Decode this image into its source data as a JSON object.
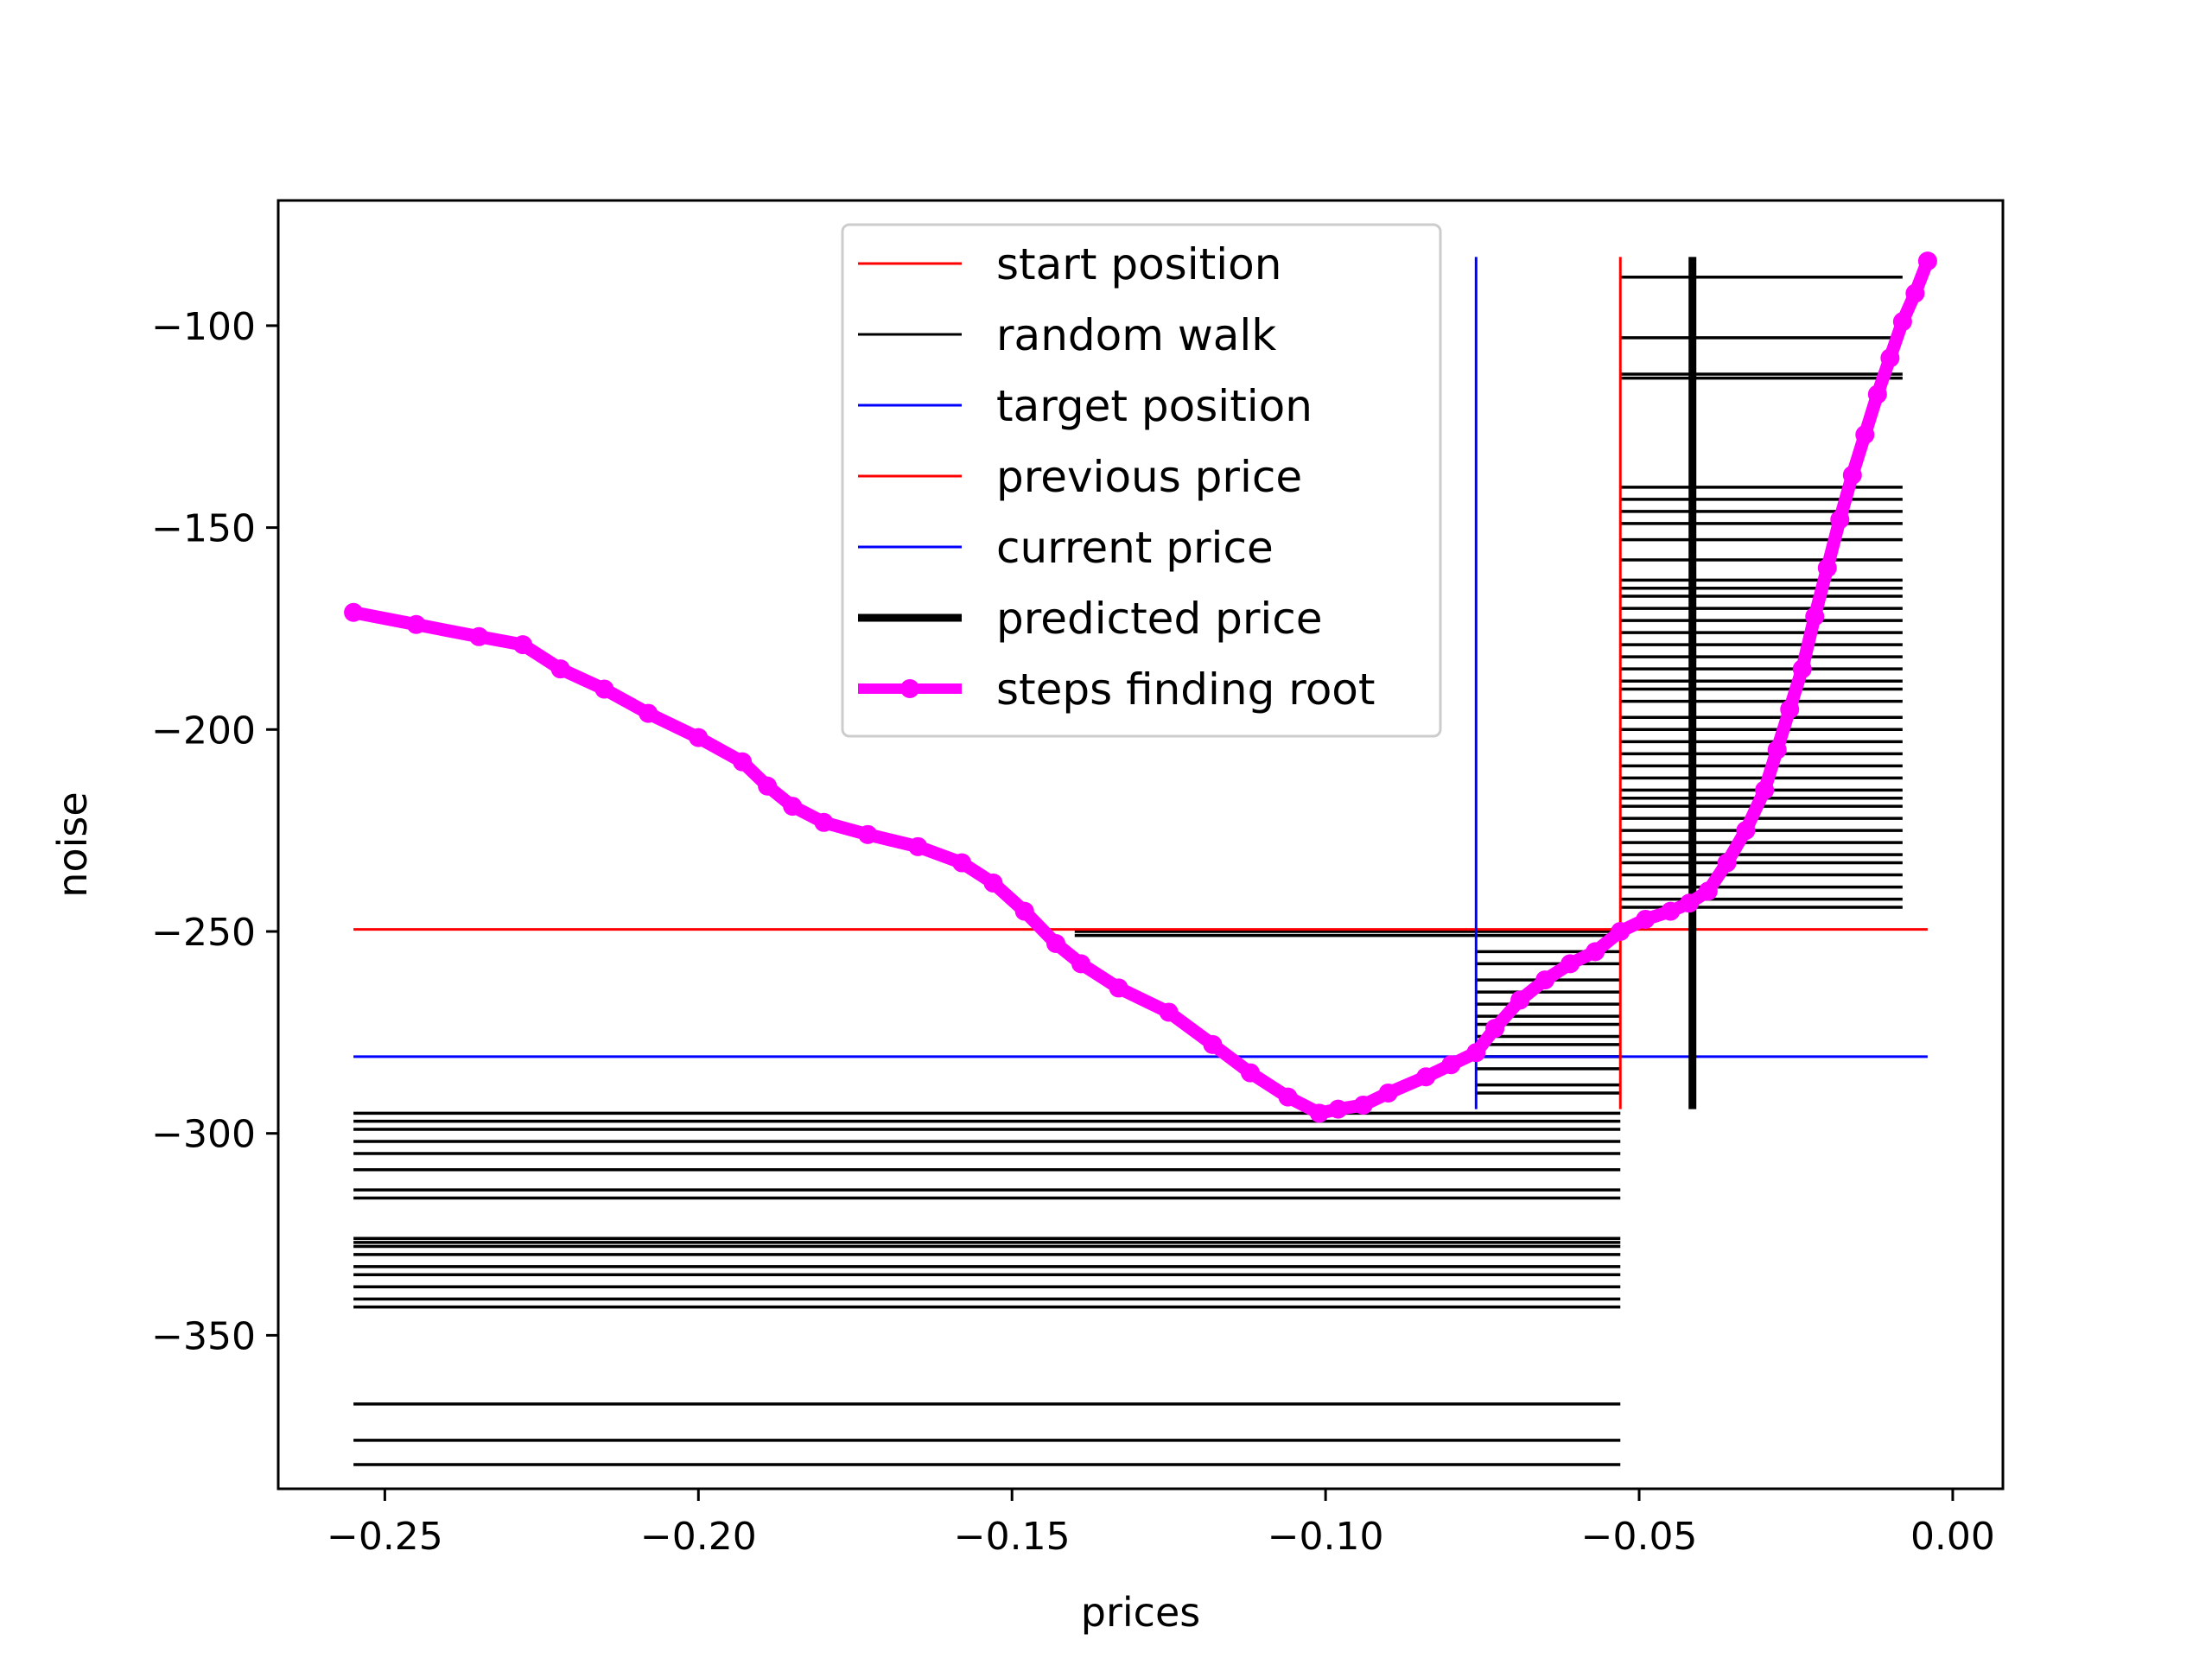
{
  "chart_data": {
    "type": "line",
    "xlabel": "prices",
    "ylabel": "noise",
    "xlim": [
      -0.267,
      0.008
    ],
    "ylim": [
      -388,
      -69
    ],
    "xticks": [
      -0.25,
      -0.2,
      -0.15,
      -0.1,
      -0.05,
      0.0
    ],
    "xtick_labels": [
      "−0.25",
      "−0.20",
      "−0.15",
      "−0.10",
      "−0.05",
      "0.00"
    ],
    "yticks": [
      -100,
      -150,
      -200,
      -250,
      -300,
      -350
    ],
    "ytick_labels": [
      "−100",
      "−150",
      "−200",
      "−250",
      "−300",
      "−350"
    ],
    "legend_position": "top-center",
    "legend": [
      {
        "label": "start position",
        "color": "#ff0000",
        "style": "thin"
      },
      {
        "label": "random walk",
        "color": "#000000",
        "style": "thin"
      },
      {
        "label": "target position",
        "color": "#0000ff",
        "style": "thin"
      },
      {
        "label": "previous price",
        "color": "#ff0000",
        "style": "thin"
      },
      {
        "label": "current price",
        "color": "#0000ff",
        "style": "thin"
      },
      {
        "label": "predicted price",
        "color": "#000000",
        "style": "thick"
      },
      {
        "label": "steps finding root",
        "color": "#ff00ff",
        "style": "marker"
      }
    ],
    "start_position": {
      "price": -0.053,
      "noise": -249.5
    },
    "target_position": {
      "price": -0.076,
      "noise": -281
    },
    "vertical_lines": [
      {
        "series": "previous price",
        "x": -0.053,
        "y_range": [
          -294,
          -83
        ],
        "color": "#ff0000"
      },
      {
        "series": "current price",
        "x": -0.076,
        "y_range": [
          -294,
          -83
        ],
        "color": "#0000ff"
      },
      {
        "series": "predicted price",
        "x": -0.0415,
        "y_range": [
          -294,
          -83
        ],
        "color": "#000000"
      }
    ],
    "horizontal_lines": [
      {
        "series": "start position",
        "y": -249.5,
        "x_range": [
          -0.255,
          -0.004
        ],
        "color": "#ff0000"
      },
      {
        "series": "target position",
        "y": -281,
        "x_range": [
          -0.255,
          -0.004
        ],
        "color": "#0000ff"
      }
    ],
    "random_walk_lines_lower": {
      "x_range": [
        -0.255,
        -0.053
      ],
      "y_values": [
        -382,
        -376,
        -367,
        -343,
        -341,
        -338,
        -335,
        -333,
        -330,
        -328,
        -327,
        -326,
        -316,
        -314,
        -309,
        -305,
        -302,
        -299,
        -297,
        -295
      ]
    },
    "random_walk_lines_middle": {
      "x_range": [
        -0.076,
        -0.053
      ],
      "y_values": [
        -290,
        -288,
        -284,
        -281,
        -278,
        -276,
        -273,
        -271,
        -268,
        -265,
        -262,
        -258,
        -255
      ]
    },
    "random_walk_lines_band": {
      "x_range": [
        -0.14,
        -0.053
      ],
      "y_values": [
        -250,
        -251
      ]
    },
    "random_walk_lines_upper": {
      "x_range": [
        -0.053,
        -0.008
      ],
      "y_values": [
        -88,
        -103,
        -112,
        -113,
        -140,
        -143,
        -146,
        -149,
        -153,
        -158,
        -163,
        -165,
        -167,
        -170,
        -173,
        -176,
        -179,
        -182,
        -185,
        -188,
        -190,
        -193,
        -197,
        -200,
        -203,
        -206,
        -209,
        -212,
        -215,
        -217,
        -219,
        -222,
        -225,
        -228,
        -231,
        -233,
        -236,
        -239,
        -242,
        -244
      ]
    },
    "series": [
      {
        "name": "steps finding root",
        "color": "#ff00ff",
        "x": [
          -0.255,
          -0.245,
          -0.235,
          -0.228,
          -0.222,
          -0.215,
          -0.208,
          -0.2,
          -0.193,
          -0.189,
          -0.185,
          -0.18,
          -0.173,
          -0.165,
          -0.158,
          -0.153,
          -0.148,
          -0.143,
          -0.139,
          -0.133,
          -0.125,
          -0.118,
          -0.112,
          -0.106,
          -0.101,
          -0.098,
          -0.094,
          -0.09,
          -0.084,
          -0.08,
          -0.076,
          -0.073,
          -0.069,
          -0.065,
          -0.061,
          -0.057,
          -0.053,
          -0.049,
          -0.045,
          -0.042,
          -0.039,
          -0.036,
          -0.033,
          -0.03,
          -0.028,
          -0.026,
          -0.024,
          -0.022,
          -0.02,
          -0.018,
          -0.016,
          -0.014,
          -0.012,
          -0.01,
          -0.008,
          -0.006,
          -0.004
        ],
        "y": [
          -171,
          -174,
          -177,
          -179,
          -185,
          -190,
          -196,
          -202,
          -208,
          -214,
          -219,
          -223,
          -226,
          -229,
          -233,
          -238,
          -245,
          -253,
          -258,
          -264,
          -270,
          -278,
          -285,
          -291,
          -295,
          -294,
          -293,
          -290,
          -286,
          -283,
          -280,
          -274,
          -267,
          -262,
          -258,
          -255,
          -250,
          -247,
          -245,
          -243,
          -240,
          -233,
          -225,
          -215,
          -205,
          -195,
          -185,
          -172,
          -160,
          -148,
          -137,
          -127,
          -117,
          -108,
          -99,
          -92,
          -84
        ]
      }
    ]
  }
}
